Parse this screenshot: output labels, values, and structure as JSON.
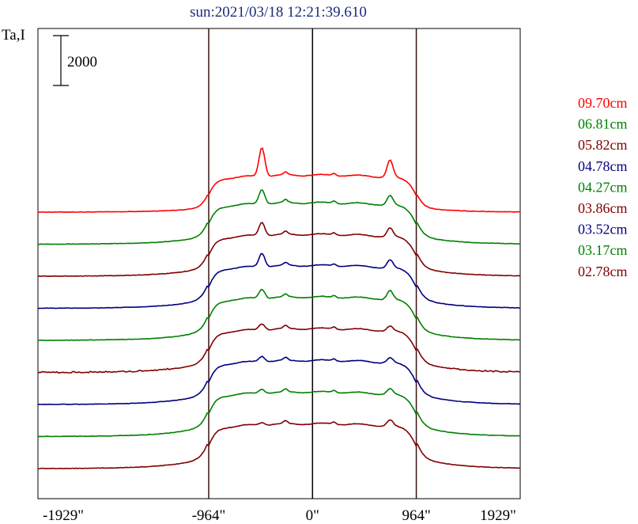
{
  "chart_data": {
    "type": "line",
    "title": "sun:2021/03/18 12:21:39.610",
    "ylabel": "Ta,I",
    "scale_bar_label": "2000",
    "scale_bar_value": 2000,
    "xlim": [
      -2550,
      1929
    ],
    "x_ticks": [
      {
        "value": -1929,
        "label": "-1929\""
      },
      {
        "value": -964,
        "label": "-964\""
      },
      {
        "value": 0,
        "label": "0\""
      },
      {
        "value": 964,
        "label": "964\""
      },
      {
        "value": 1929,
        "label": "1929\""
      }
    ],
    "vertical_lines": [
      -964,
      0,
      964
    ],
    "series": [
      {
        "name": "09.70cm",
        "color": "#ff0000",
        "plateau": 1090,
        "peak_left": 930,
        "peak_right": 550,
        "shoulder": 160,
        "baseline_noise": 0
      },
      {
        "name": "06.81cm",
        "color": "#008000",
        "plateau": 1160,
        "peak_left": 470,
        "peak_right": 300,
        "shoulder": 280,
        "baseline_noise": 0
      },
      {
        "name": "05.82cm",
        "color": "#800000",
        "plateau": 1160,
        "peak_left": 440,
        "peak_right": 280,
        "shoulder": 300,
        "baseline_noise": 0
      },
      {
        "name": "04.78cm",
        "color": "#000080",
        "plateau": 1180,
        "peak_left": 440,
        "peak_right": 250,
        "shoulder": 320,
        "baseline_noise": 0
      },
      {
        "name": "04.27cm",
        "color": "#008000",
        "plateau": 1190,
        "peak_left": 300,
        "peak_right": 280,
        "shoulder": 330,
        "baseline_noise": 0
      },
      {
        "name": "03.86cm",
        "color": "#800000",
        "plateau": 1200,
        "peak_left": 200,
        "peak_right": 150,
        "shoulder": 340,
        "baseline_noise": 40
      },
      {
        "name": "03.52cm",
        "color": "#000080",
        "plateau": 1200,
        "peak_left": 180,
        "peak_right": 160,
        "shoulder": 350,
        "baseline_noise": 0
      },
      {
        "name": "03.17cm",
        "color": "#008000",
        "plateau": 1210,
        "peak_left": 130,
        "peak_right": 180,
        "shoulder": 360,
        "baseline_noise": 0
      },
      {
        "name": "02.78cm",
        "color": "#800000",
        "plateau": 1215,
        "peak_left": 80,
        "peak_right": 200,
        "shoulder": 370,
        "baseline_noise": 0
      }
    ],
    "grid": false,
    "legend": "right"
  }
}
